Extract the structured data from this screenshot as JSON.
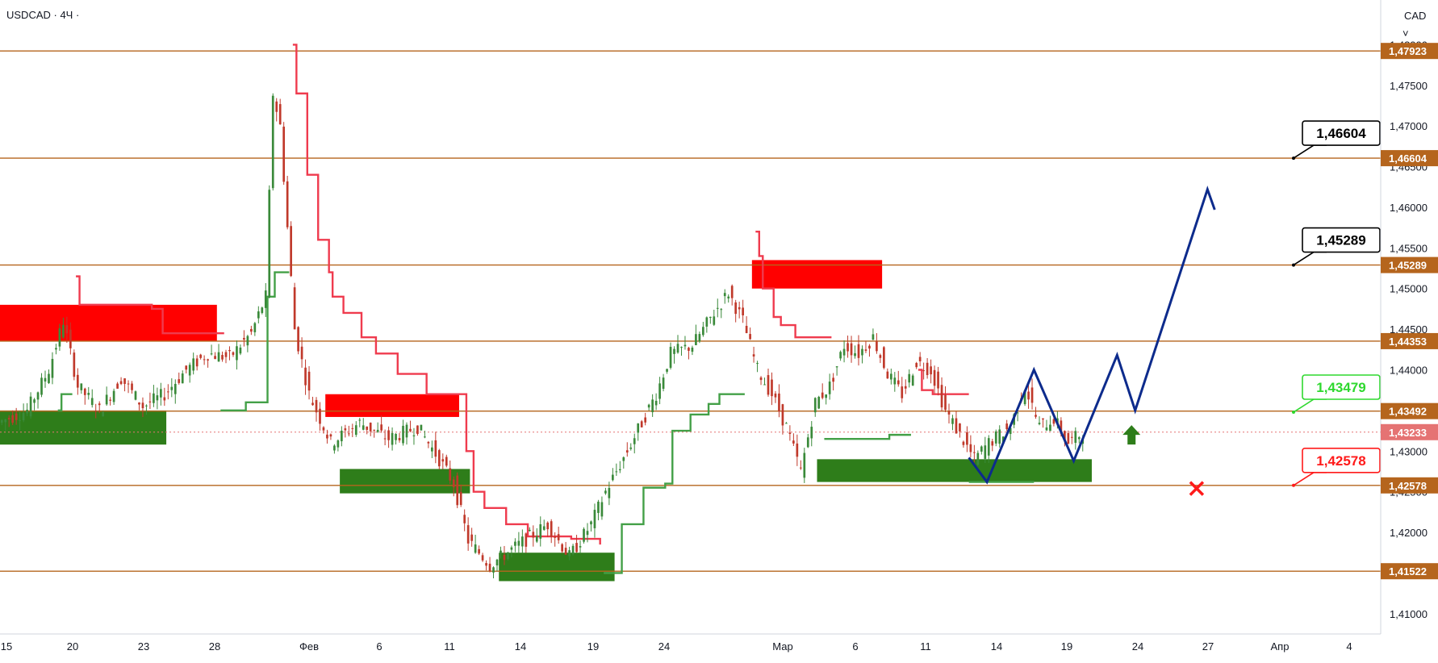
{
  "symbol_label": "USDCAD · 4Ч ·",
  "currency_label": "CAD",
  "colors": {
    "level": "#b5651d",
    "badge": "#b5651d",
    "supply_zone": "#ff0000",
    "demand_zone": "#2e7d1a",
    "up_candle": "#3a8a3a",
    "down_candle": "#c0392b",
    "red_trail": "#ef3b4e",
    "green_trail": "#43a047",
    "forecast": "#0d2b8c",
    "callout_black": "#000000",
    "callout_green": "#2ed82e",
    "callout_red": "#ff1a1a",
    "current_price": "#e57373"
  },
  "chart_data": {
    "type": "candlestick",
    "symbol": "USDCAD",
    "timeframe": "4Ч",
    "ylim": [
      1.4075,
      1.4855
    ],
    "x_ticks": [
      "15",
      "20",
      "23",
      "28",
      "Фев",
      "6",
      "11",
      "14",
      "19",
      "24",
      "Мар",
      "6",
      "11",
      "14",
      "19",
      "24",
      "27",
      "Апр",
      "4"
    ],
    "y_ticks": [
      "1,41000",
      "1,41500",
      "1,42000",
      "1,42500",
      "1,43000",
      "1,43500",
      "1,44000",
      "1,44500",
      "1,45000",
      "1,45500",
      "1,46000",
      "1,46500",
      "1,47000",
      "1,47500",
      "1,48000"
    ],
    "levels": [
      {
        "value": 1.47923,
        "label": "1,47923"
      },
      {
        "value": 1.46604,
        "label": "1,46604"
      },
      {
        "value": 1.45289,
        "label": "1,45289"
      },
      {
        "value": 1.44353,
        "label": "1,44353"
      },
      {
        "value": 1.43492,
        "label": "1,43492"
      },
      {
        "value": 1.42578,
        "label": "1,42578"
      },
      {
        "value": 1.41522,
        "label": "1,41522"
      }
    ],
    "current_price": {
      "value": 1.43233,
      "label": "1,43233"
    },
    "supply_zones": [
      {
        "x0": -4,
        "x1": 60,
        "y_low": 1.4435,
        "y_high": 1.448
      },
      {
        "x0": 90,
        "x1": 127,
        "y_low": 1.4342,
        "y_high": 1.437
      },
      {
        "x0": 208,
        "x1": 244,
        "y_low": 1.45,
        "y_high": 1.4535
      }
    ],
    "demand_zones": [
      {
        "x0": -4,
        "x1": 46,
        "y_low": 1.4308,
        "y_high": 1.435
      },
      {
        "x0": 94,
        "x1": 130,
        "y_low": 1.4248,
        "y_high": 1.4278
      },
      {
        "x0": 138,
        "x1": 170,
        "y_low": 1.414,
        "y_high": 1.4175
      },
      {
        "x0": 226,
        "x1": 302,
        "y_low": 1.4262,
        "y_high": 1.429
      }
    ],
    "forecast_path": [
      {
        "x": 268,
        "y": 1.4292
      },
      {
        "x": 273,
        "y": 1.4262
      },
      {
        "x": 286,
        "y": 1.44
      },
      {
        "x": 297,
        "y": 1.4288
      },
      {
        "x": 309,
        "y": 1.4418
      },
      {
        "x": 314,
        "y": 1.435
      },
      {
        "x": 334,
        "y": 1.4622
      },
      {
        "x": 336,
        "y": 1.4597
      }
    ],
    "callouts": [
      {
        "label": "1,46604",
        "value": 1.46604,
        "style": "black"
      },
      {
        "label": "1,45289",
        "value": 1.45289,
        "style": "black"
      },
      {
        "label": "1,43479",
        "value": 1.43479,
        "style": "green"
      },
      {
        "label": "1,42578",
        "value": 1.42578,
        "style": "red"
      }
    ],
    "markers": [
      {
        "type": "up-arrow",
        "x": 313,
        "y": 1.432
      },
      {
        "type": "cross",
        "x": 331,
        "y": 1.4254
      }
    ],
    "grid": false,
    "legend": "none"
  }
}
